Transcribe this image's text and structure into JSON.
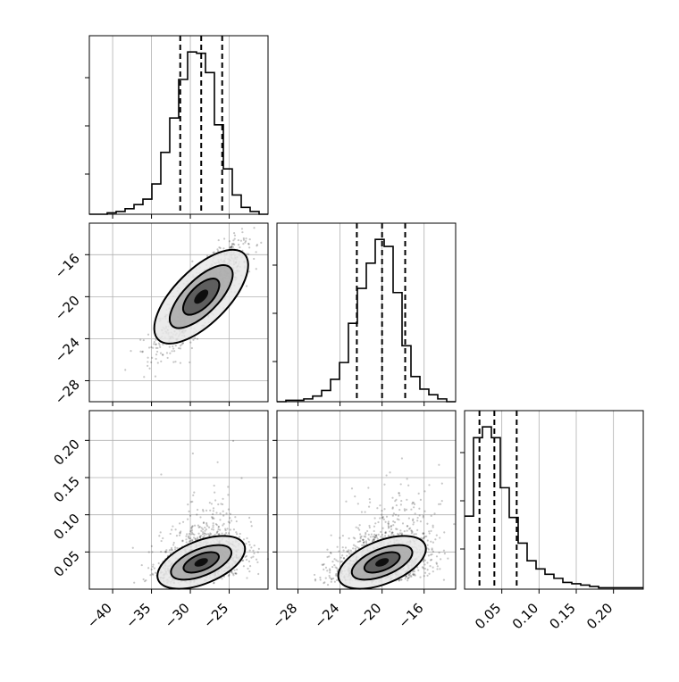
{
  "chart_data": {
    "type": "corner",
    "title": "",
    "parameters": [
      "",
      "",
      ""
    ],
    "ranges": [
      [
        -43,
        -20
      ],
      [
        -30,
        -13
      ],
      [
        0.0,
        0.24
      ]
    ],
    "ticks": [
      {
        "values": [
          -40,
          -35,
          -30,
          -25
        ],
        "labels": [
          "−40",
          "−35",
          "−30",
          "−25"
        ]
      },
      {
        "values": [
          -28,
          -24,
          -20,
          -16
        ],
        "labels": [
          "−28",
          "−24",
          "−20",
          "−16"
        ]
      },
      {
        "values": [
          0.05,
          0.1,
          0.15,
          0.2
        ],
        "labels": [
          "0.05",
          "0.10",
          "0.15",
          "0.20"
        ]
      }
    ],
    "quantiles": [
      [
        -31.3,
        -28.6,
        -25.9
      ],
      [
        -22.4,
        -20.0,
        -17.8
      ],
      [
        0.02,
        0.04,
        0.07
      ]
    ],
    "histograms": [
      {
        "bin_start": -43,
        "bin_end": -20,
        "counts": [
          0,
          0,
          1,
          2,
          4,
          7,
          11,
          22,
          45,
          70,
          98,
          118,
          117,
          103,
          65,
          33,
          14,
          5,
          2,
          0
        ]
      },
      {
        "bin_start": -30,
        "bin_end": -13,
        "counts": [
          0,
          1,
          1,
          2,
          4,
          8,
          16,
          28,
          56,
          81,
          99,
          116,
          111,
          78,
          40,
          18,
          9,
          5,
          2,
          0
        ]
      },
      {
        "bin_start": 0.0,
        "bin_end": 0.24,
        "counts": [
          54,
          112,
          120,
          112,
          75,
          53,
          34,
          21,
          15,
          11,
          8,
          5,
          4,
          3,
          2,
          1,
          1,
          1,
          1,
          1
        ]
      }
    ],
    "grid": true,
    "legend": "none"
  }
}
